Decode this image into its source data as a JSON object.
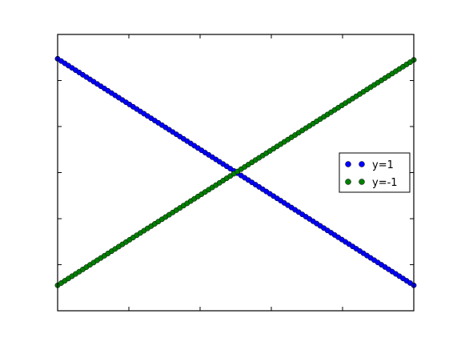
{
  "chart_data": {
    "type": "scatter",
    "title": "",
    "xlabel": "",
    "ylabel": "",
    "xlim": [
      0,
      1
    ],
    "ylim": [
      -1.25,
      1.25
    ],
    "grid": false,
    "legend_position": "center-right",
    "x_ticks": [
      0,
      0.2,
      0.4,
      0.6,
      0.8,
      1.0
    ],
    "y_ticks": [
      -1.25,
      -0.833,
      -0.417,
      0,
      0.417,
      0.833,
      1.25
    ],
    "series": [
      {
        "name": "y=1",
        "color": "#0000ff",
        "x_start": 0,
        "x_end": 1,
        "y_start": 1.03,
        "y_end": -1.02,
        "points": 100
      },
      {
        "name": "y=-1",
        "color": "#007f00",
        "x_start": 0,
        "x_end": 1,
        "y_start": -1.02,
        "y_end": 1.02,
        "points": 100
      }
    ]
  }
}
